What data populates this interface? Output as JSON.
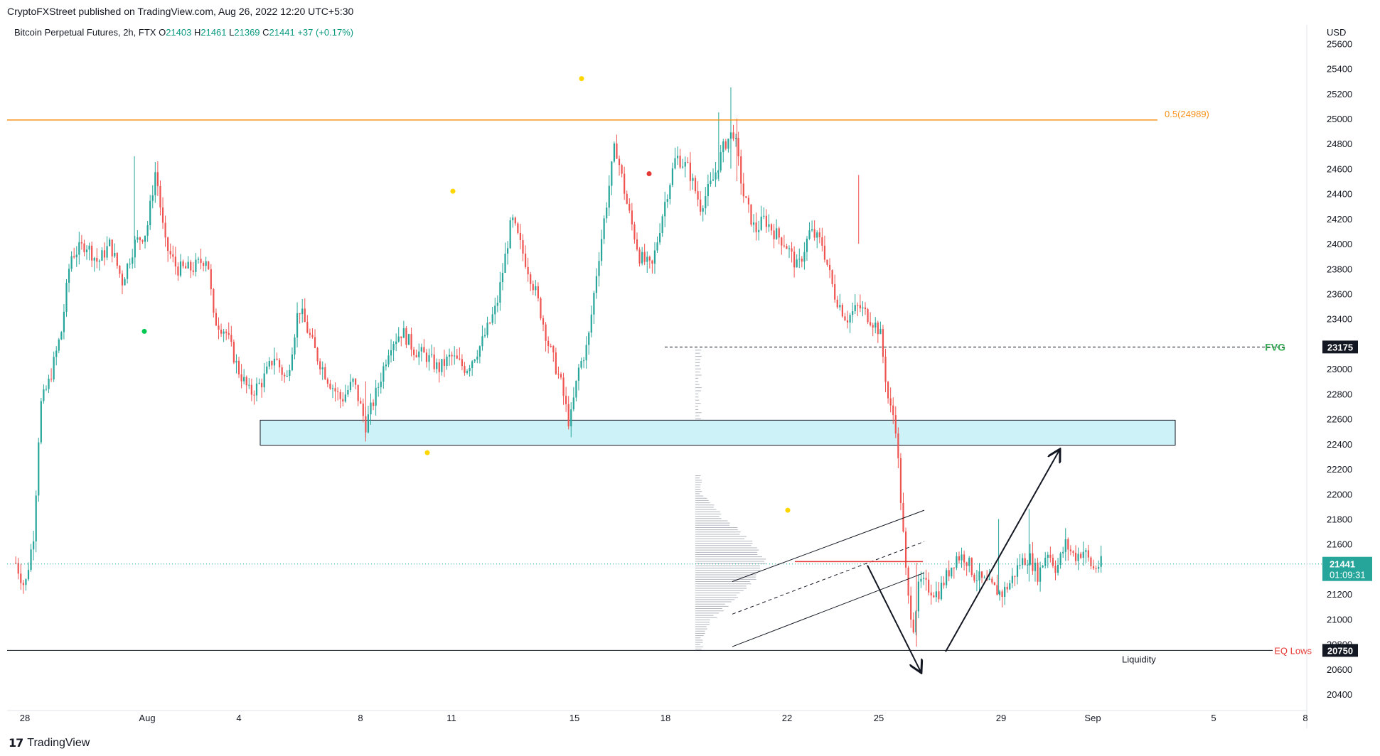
{
  "header": {
    "published": "CryptoFXStreet published on TradingView.com, Aug 26, 2022 12:20 UTC+5:30"
  },
  "symbol": {
    "name": "Bitcoin Perpetual Futures, 2h, FTX",
    "o_label": "O",
    "o": "21403",
    "h_label": "H",
    "h": "21461",
    "l_label": "L",
    "l": "21369",
    "c_label": "C",
    "c": "21441",
    "change": "+37 (+0.17%)"
  },
  "footer": {
    "brand": "TradingView"
  },
  "chart_data": {
    "type": "candlestick",
    "currency_label": "USD",
    "y_ticks": [
      20400,
      20600,
      20800,
      21000,
      21200,
      21400,
      21600,
      21800,
      22000,
      22200,
      22400,
      22600,
      22800,
      23000,
      23200,
      23400,
      23600,
      23800,
      24000,
      24200,
      24400,
      24600,
      24800,
      25000,
      25200,
      25400,
      25600
    ],
    "x_ticks": [
      "28",
      "Aug",
      "4",
      "8",
      "11",
      "15",
      "18",
      "22",
      "25",
      "29",
      "Sep",
      "5",
      "8"
    ],
    "price_range": [
      20300,
      25650
    ],
    "colors": {
      "up": "#26a69a",
      "down": "#ef5350",
      "fib": "#f7931a",
      "zone": "#cdf3f8",
      "fvg": "#34a853",
      "eq": "#e53935"
    },
    "levels": {
      "fib": {
        "label": "0.5(24989)",
        "value": 24989
      },
      "fvg": {
        "label": "FVG",
        "value": 23175,
        "badge": "23175"
      },
      "eq_lows": {
        "label": "EQ Lows",
        "value": 20750,
        "badge": "20750"
      },
      "current": {
        "badge": "21441",
        "countdown": "01:09:31",
        "value": 21441
      }
    },
    "zone": {
      "top": 22590,
      "bottom": 22390
    },
    "annotations": {
      "liquidity": "Liquidity"
    }
  }
}
